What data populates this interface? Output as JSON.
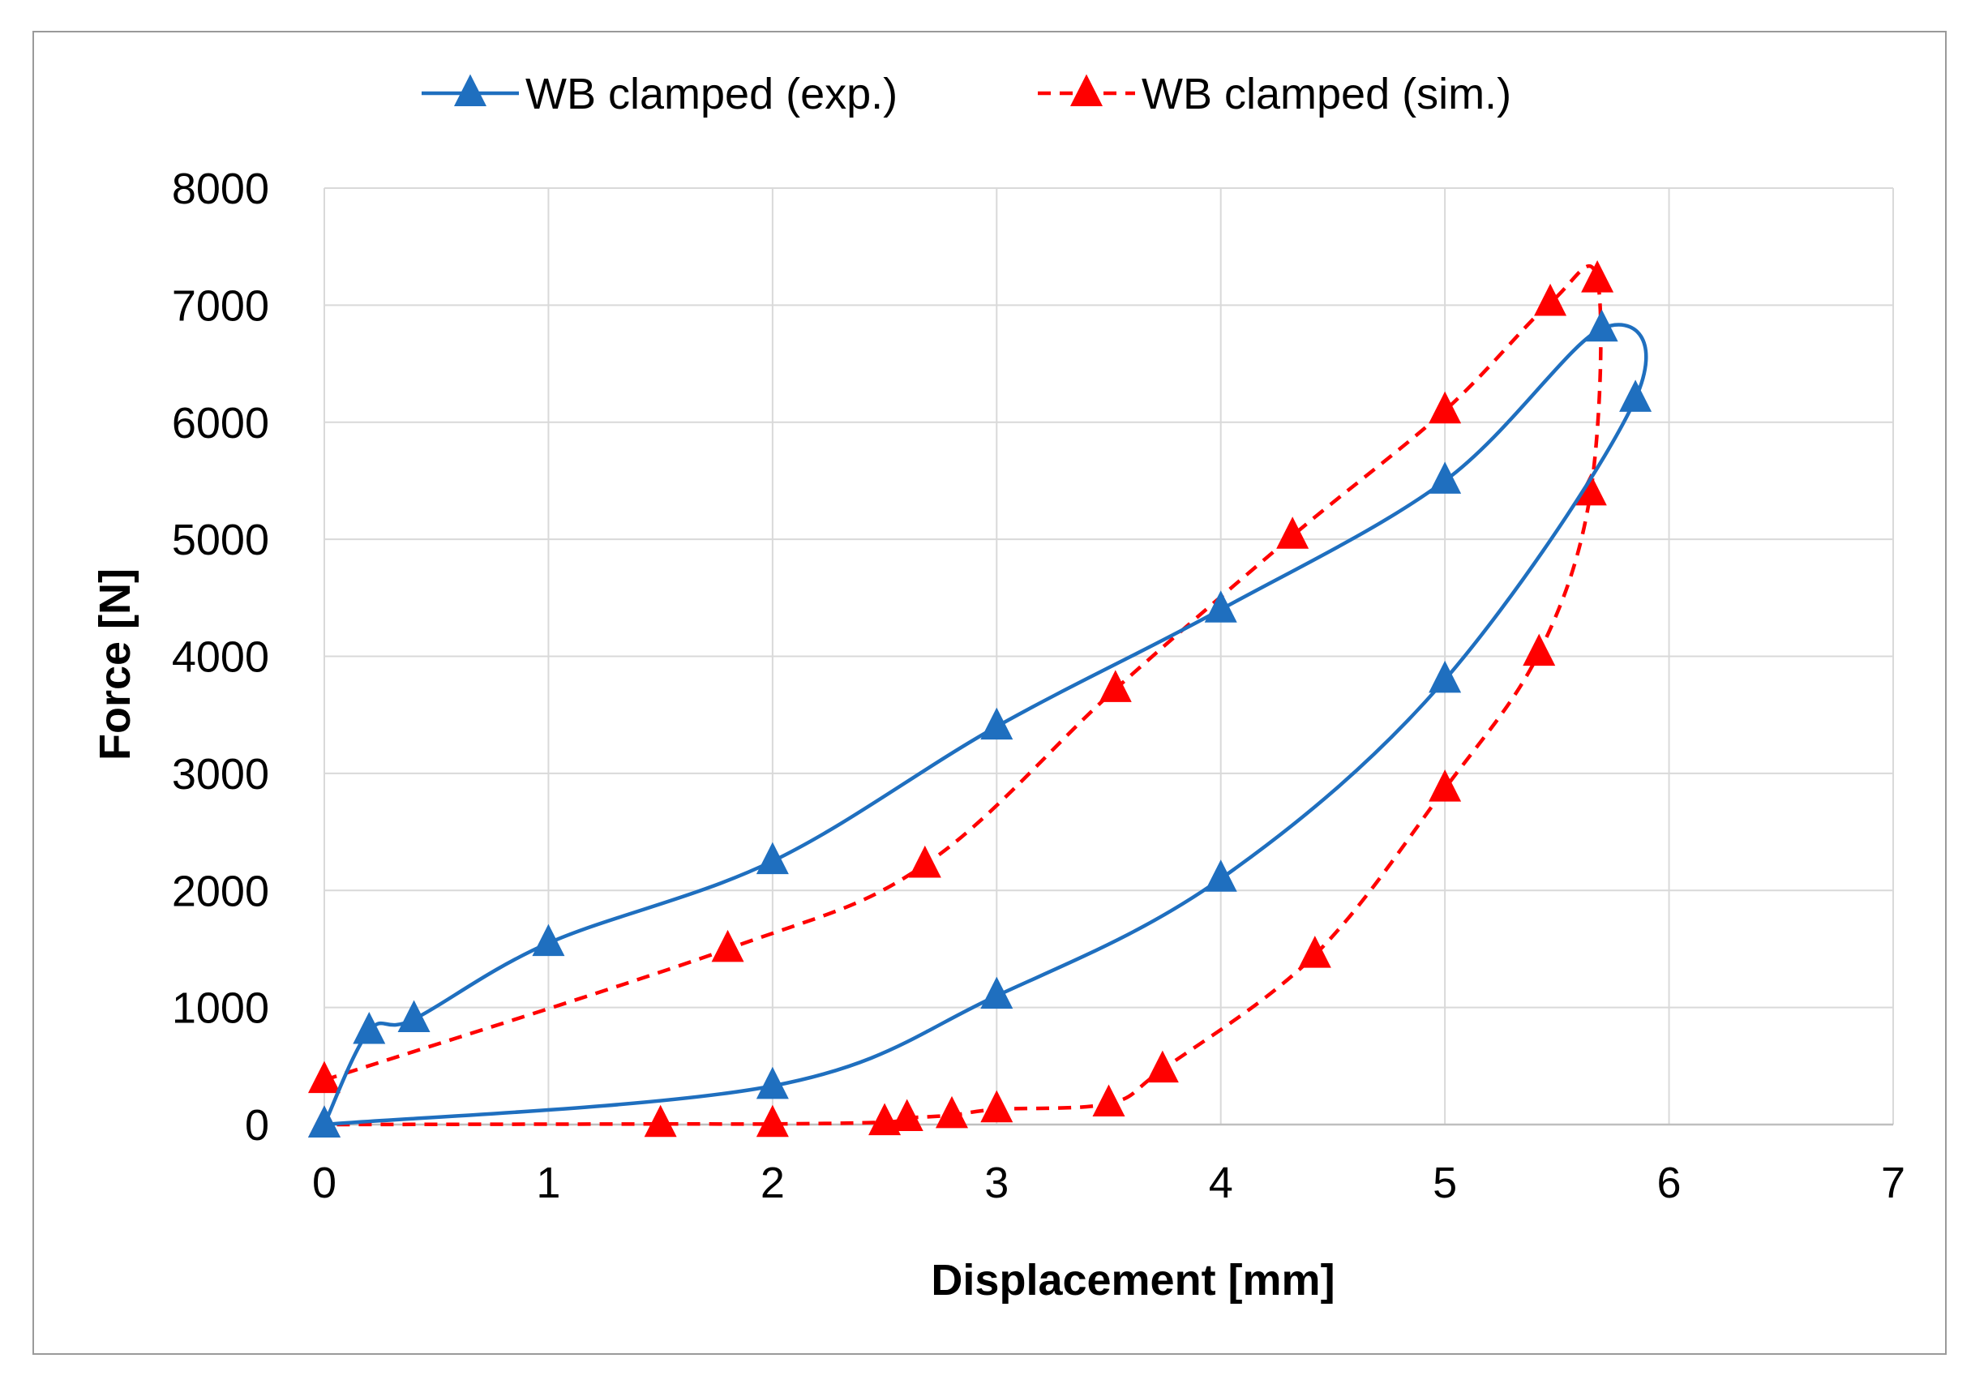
{
  "chart_data": {
    "type": "line",
    "title": "",
    "xlabel": "Displacement [mm]",
    "ylabel": "Force [N]",
    "xlim": [
      0,
      7
    ],
    "ylim": [
      0,
      8000
    ],
    "xticks": [
      "0",
      "1",
      "2",
      "3",
      "4",
      "5",
      "6",
      "7"
    ],
    "yticks": [
      "0",
      "1000",
      "2000",
      "3000",
      "4000",
      "5000",
      "6000",
      "7000",
      "8000"
    ],
    "grid": true,
    "legend_position": "top",
    "series": [
      {
        "name": "WB clamped (exp.)",
        "color": "#1f6fbf",
        "line_style": "solid",
        "marker": "triangle",
        "points": [
          {
            "x": 0,
            "y": 0
          },
          {
            "x": 0.2,
            "y": 800
          },
          {
            "x": 0.4,
            "y": 900
          },
          {
            "x": 1,
            "y": 1550
          },
          {
            "x": 2,
            "y": 2250
          },
          {
            "x": 3,
            "y": 3400
          },
          {
            "x": 4,
            "y": 4400
          },
          {
            "x": 5,
            "y": 5500
          },
          {
            "x": 5.7,
            "y": 6800
          },
          {
            "x": 5.85,
            "y": 6200
          },
          {
            "x": 5,
            "y": 3800
          },
          {
            "x": 4,
            "y": 2100
          },
          {
            "x": 3,
            "y": 1100
          },
          {
            "x": 2,
            "y": 330
          },
          {
            "x": 0,
            "y": 0
          }
        ]
      },
      {
        "name": "WB clamped (sim.)",
        "color": "#ff0000",
        "line_style": "dashed",
        "marker": "triangle",
        "points": [
          {
            "x": 0,
            "y": 380
          },
          {
            "x": 1.8,
            "y": 1500
          },
          {
            "x": 2.68,
            "y": 2220
          },
          {
            "x": 3.53,
            "y": 3720
          },
          {
            "x": 4.32,
            "y": 5030
          },
          {
            "x": 5,
            "y": 6100
          },
          {
            "x": 5.47,
            "y": 7020
          },
          {
            "x": 5.68,
            "y": 7220
          },
          {
            "x": 5.65,
            "y": 5400
          },
          {
            "x": 5.42,
            "y": 4030
          },
          {
            "x": 5,
            "y": 2870
          },
          {
            "x": 4.42,
            "y": 1450
          },
          {
            "x": 3.74,
            "y": 470
          },
          {
            "x": 3.5,
            "y": 180
          },
          {
            "x": 3,
            "y": 130
          },
          {
            "x": 2.8,
            "y": 80
          },
          {
            "x": 2.6,
            "y": 55
          },
          {
            "x": 2.5,
            "y": 20
          },
          {
            "x": 2,
            "y": 5
          },
          {
            "x": 1.5,
            "y": 5
          },
          {
            "x": 0,
            "y": 0
          }
        ]
      }
    ]
  }
}
